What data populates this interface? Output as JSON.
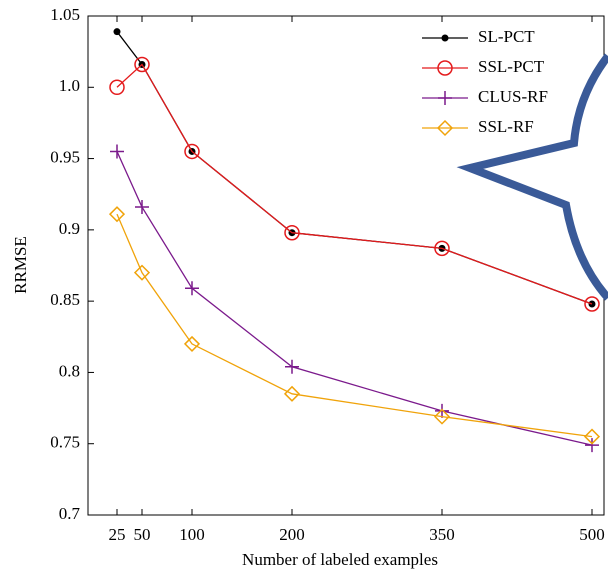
{
  "chart_data": {
    "type": "line",
    "x_label": "Number of labeled examples",
    "y_label": "RRMSE",
    "x": [
      25,
      50,
      100,
      200,
      350,
      500
    ],
    "series": [
      {
        "name": "SL-PCT",
        "color": "#000000",
        "marker": "dot",
        "values": [
          1.039,
          1.016,
          0.955,
          0.898,
          0.887,
          0.848
        ]
      },
      {
        "name": "SSL-PCT",
        "color": "#e41a1c",
        "marker": "circle",
        "values": [
          1.0,
          1.016,
          0.955,
          0.898,
          0.887,
          0.848
        ]
      },
      {
        "name": "CLUS-RF",
        "color": "#7b1a8c",
        "marker": "plus",
        "values": [
          0.955,
          0.916,
          0.859,
          0.804,
          0.773,
          0.749
        ]
      },
      {
        "name": "SSL-RF",
        "color": "#f0a30a",
        "marker": "diamond",
        "values": [
          0.911,
          0.87,
          0.82,
          0.785,
          0.769,
          0.755
        ]
      }
    ],
    "xlim": [
      -4,
      512
    ],
    "xticks": [
      25,
      50,
      100,
      200,
      350,
      500
    ],
    "ylim": [
      0.7,
      1.05
    ],
    "yticks": [
      0.7,
      0.75,
      0.8,
      0.85,
      0.9,
      0.95,
      {
        "value": 1.0,
        "label": "1.0"
      },
      1.05
    ],
    "legend": "top-right"
  }
}
